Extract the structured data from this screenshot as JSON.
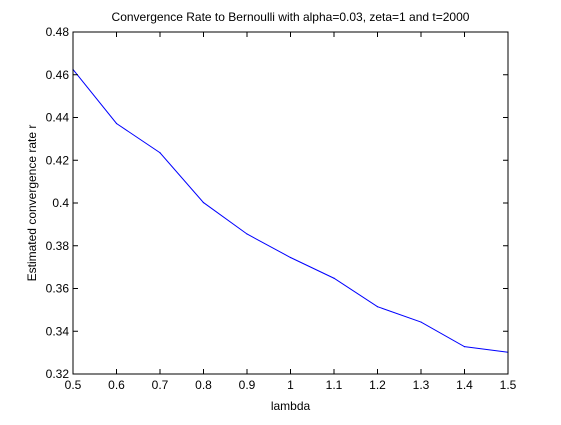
{
  "chart_data": {
    "type": "line",
    "title": "Convergence Rate to Bernoulli with alpha=0.03, zeta=1 and t=2000",
    "xlabel": "lambda",
    "ylabel": "Estimated convergence rate r",
    "xlim": [
      0.5,
      1.5
    ],
    "ylim": [
      0.32,
      0.48
    ],
    "xticks": [
      0.5,
      0.6,
      0.7,
      0.8,
      0.9,
      1,
      1.1,
      1.2,
      1.3,
      1.4,
      1.5
    ],
    "xtick_labels": [
      "0.5",
      "0.6",
      "0.7",
      "0.8",
      "0.9",
      "1",
      "1.1",
      "1.2",
      "1.3",
      "1.4",
      "1.5"
    ],
    "yticks": [
      0.32,
      0.34,
      0.36,
      0.38,
      0.4,
      0.42,
      0.44,
      0.46,
      0.48
    ],
    "ytick_labels": [
      "0.32",
      "0.34",
      "0.36",
      "0.38",
      "0.4",
      "0.42",
      "0.44",
      "0.46",
      "0.48"
    ],
    "grid": false,
    "series": [
      {
        "color": "#0000ff",
        "x": [
          0.5,
          0.6,
          0.7,
          0.8,
          0.9,
          1.0,
          1.1,
          1.2,
          1.3,
          1.4,
          1.5
        ],
        "y": [
          0.4625,
          0.4372,
          0.4235,
          0.4002,
          0.3855,
          0.3745,
          0.3648,
          0.3515,
          0.3443,
          0.3328,
          0.3302
        ]
      }
    ]
  }
}
